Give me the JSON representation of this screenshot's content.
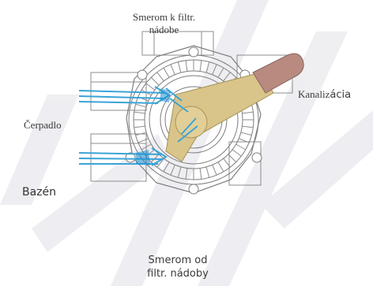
{
  "labels": {
    "top_line1": "Smerom k filtr.",
    "top_line2": "nádobe",
    "right_a": "Kanaliz",
    "right_b": "ácia",
    "pump": "Čerpadlo",
    "pool": "Bazén",
    "bottom_line1": "Smerom od",
    "bottom_line2": "filtr. nádoby"
  },
  "colors": {
    "outline": "#8c8c8c",
    "handle": "#d9c48a",
    "handle_grip": "#b88a80",
    "flow": "#3aa4d8",
    "watermark": "#e6e6ea"
  },
  "icons": [
    "flow-arrow-icon"
  ]
}
